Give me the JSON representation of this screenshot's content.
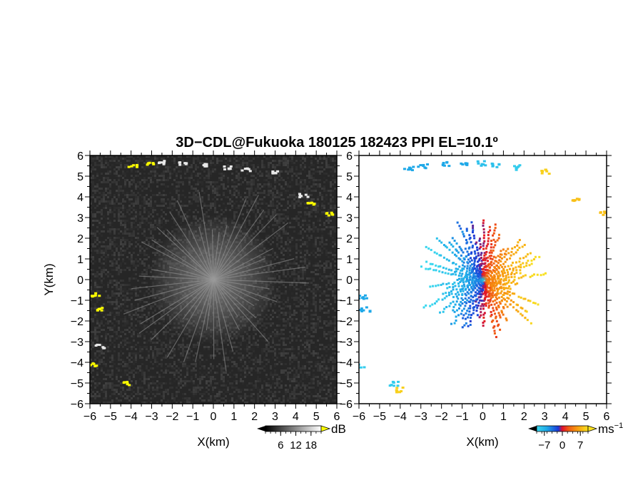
{
  "title": "3D−CDL@Fukuoka 180125 182423 PPI EL=10.1º",
  "chart_data": [
    {
      "type": "heatmap",
      "name": "",
      "xlabel": "X(km)",
      "ylabel": "Y(km)",
      "xlim": [
        -6,
        6
      ],
      "ylim": [
        -6,
        6
      ],
      "xticks": [
        "−6",
        "−5",
        "−4",
        "−3",
        "−2",
        "−1",
        "0",
        "1",
        "2",
        "3",
        "4",
        "5",
        "6"
      ],
      "yticks": [
        "−6",
        "−5",
        "−4",
        "−3",
        "−2",
        "−1",
        "0",
        "1",
        "2",
        "3",
        "4",
        "5",
        "6"
      ],
      "colorbar": {
        "unit": "dB",
        "tick_labels": [
          "6",
          "12",
          "18"
        ],
        "ticks": [
          6,
          12,
          18
        ],
        "range": [
          0,
          22
        ]
      },
      "echo_features": [
        {
          "x": -3.9,
          "y": 5.5,
          "color": "#ffff00"
        },
        {
          "x": -3.1,
          "y": 5.65,
          "color": "#ffff00"
        },
        {
          "x": -2.5,
          "y": 5.7,
          "color": "#e8e8e8"
        },
        {
          "x": -1.5,
          "y": 5.65,
          "color": "#e8e8e8"
        },
        {
          "x": -0.3,
          "y": 5.55,
          "color": "#e8e8e8"
        },
        {
          "x": 0.7,
          "y": 5.45,
          "color": "#e8e8e8"
        },
        {
          "x": 1.6,
          "y": 5.35,
          "color": "#e8e8e8"
        },
        {
          "x": 3.0,
          "y": 5.2,
          "color": "#e8e8e8"
        },
        {
          "x": 4.4,
          "y": 4.1,
          "color": "#e8e8e8"
        },
        {
          "x": 4.8,
          "y": 3.7,
          "color": "#ffff00"
        },
        {
          "x": 5.7,
          "y": 3.2,
          "color": "#ffff00"
        },
        {
          "x": -5.7,
          "y": -0.7,
          "color": "#ffff00"
        },
        {
          "x": -5.6,
          "y": -1.4,
          "color": "#ffff00"
        },
        {
          "x": -5.5,
          "y": -3.2,
          "color": "#e8e8e8"
        },
        {
          "x": -5.8,
          "y": -4.1,
          "color": "#ffff00"
        },
        {
          "x": -4.2,
          "y": -5.0,
          "color": "#ffff00"
        }
      ]
    },
    {
      "type": "heatmap",
      "name": "",
      "xlabel": "X(km)",
      "ylabel": "",
      "xlim": [
        -6,
        6
      ],
      "ylim": [
        -6,
        6
      ],
      "xticks": [
        "−6",
        "−5",
        "−4",
        "−3",
        "−2",
        "−1",
        "0",
        "1",
        "2",
        "3",
        "4",
        "5",
        "6"
      ],
      "yticks": [
        "−6",
        "−5",
        "−4",
        "−3",
        "−2",
        "−1",
        "0",
        "1",
        "2",
        "3",
        "4",
        "5",
        "6"
      ],
      "colorbar": {
        "unit": "ms−1",
        "tick_labels": [
          "−7",
          "0",
          "7"
        ],
        "ticks": [
          -7,
          0,
          7
        ],
        "range": [
          -10,
          10
        ]
      },
      "echo_features": [
        {
          "x": -3.6,
          "y": 5.4,
          "value": -6
        },
        {
          "x": -2.9,
          "y": 5.5,
          "value": -6
        },
        {
          "x": -1.8,
          "y": 5.6,
          "value": -6
        },
        {
          "x": -1.0,
          "y": 5.55,
          "value": -6
        },
        {
          "x": 0.0,
          "y": 5.65,
          "value": -8
        },
        {
          "x": 0.6,
          "y": 5.55,
          "value": -8
        },
        {
          "x": 1.6,
          "y": 5.45,
          "value": -9
        },
        {
          "x": 3.0,
          "y": 5.25,
          "value": 9
        },
        {
          "x": 4.6,
          "y": 3.9,
          "value": 8
        },
        {
          "x": 5.9,
          "y": 3.2,
          "value": 8
        },
        {
          "x": -5.8,
          "y": -0.8,
          "value": -6
        },
        {
          "x": -5.7,
          "y": -1.4,
          "value": -6
        },
        {
          "x": -5.9,
          "y": -4.1,
          "value": -9
        },
        {
          "x": -4.3,
          "y": -5.0,
          "value": -9
        },
        {
          "x": -4.0,
          "y": -5.3,
          "value": 9
        }
      ]
    }
  ]
}
